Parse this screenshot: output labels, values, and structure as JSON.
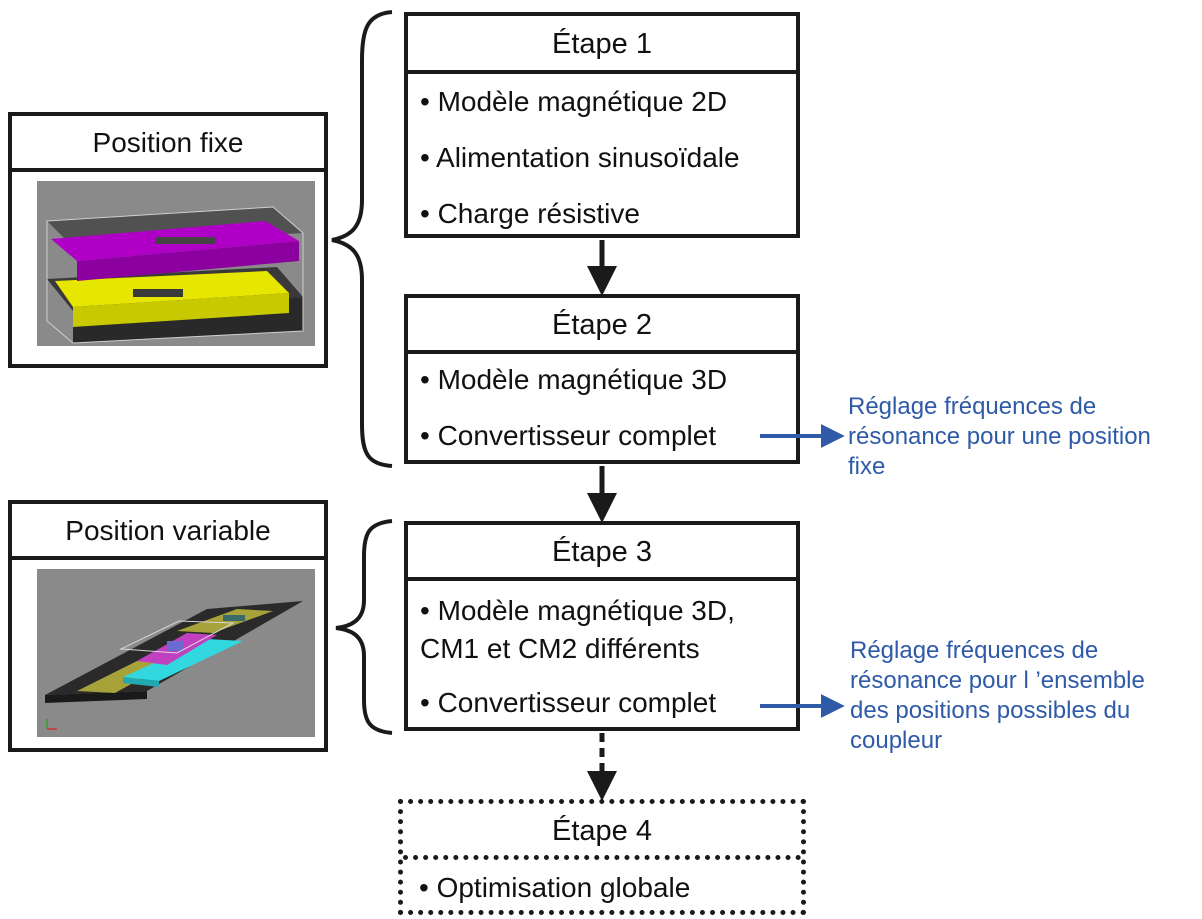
{
  "steps": [
    {
      "title": "Étape 1",
      "items": [
        "• Modèle magnétique 2D",
        "• Alimentation sinusoïdale",
        "• Charge résistive"
      ]
    },
    {
      "title": "Étape 2",
      "items": [
        "• Modèle magnétique 3D",
        "• Convertisseur complet"
      ]
    },
    {
      "title": "Étape 3",
      "items": [
        "• Modèle magnétique 3D,",
        "CM1 et CM2 différents",
        "• Convertisseur complet"
      ]
    },
    {
      "title": "Étape 4",
      "items": [
        "• Optimisation globale"
      ]
    }
  ],
  "positions": {
    "fixed": {
      "title": "Position fixe"
    },
    "variable": {
      "title": "Position variable"
    }
  },
  "notes": {
    "step2": [
      "Réglage fréquences de",
      "résonance pour une position",
      "fixe"
    ],
    "step3": [
      "Réglage fréquences de",
      "résonance pour l ’ensemble",
      "des positions possibles du",
      "coupleur"
    ]
  },
  "colors": {
    "box_border": "#1a1a1a",
    "note_text": "#2e5aa8",
    "arrow_blue": "#2e5aa8",
    "magenta": "#b000c8",
    "yellow": "#e6e600",
    "cyan": "#32d8e0",
    "olive": "#a7a23a",
    "render_bg": "#8a8a8a"
  }
}
